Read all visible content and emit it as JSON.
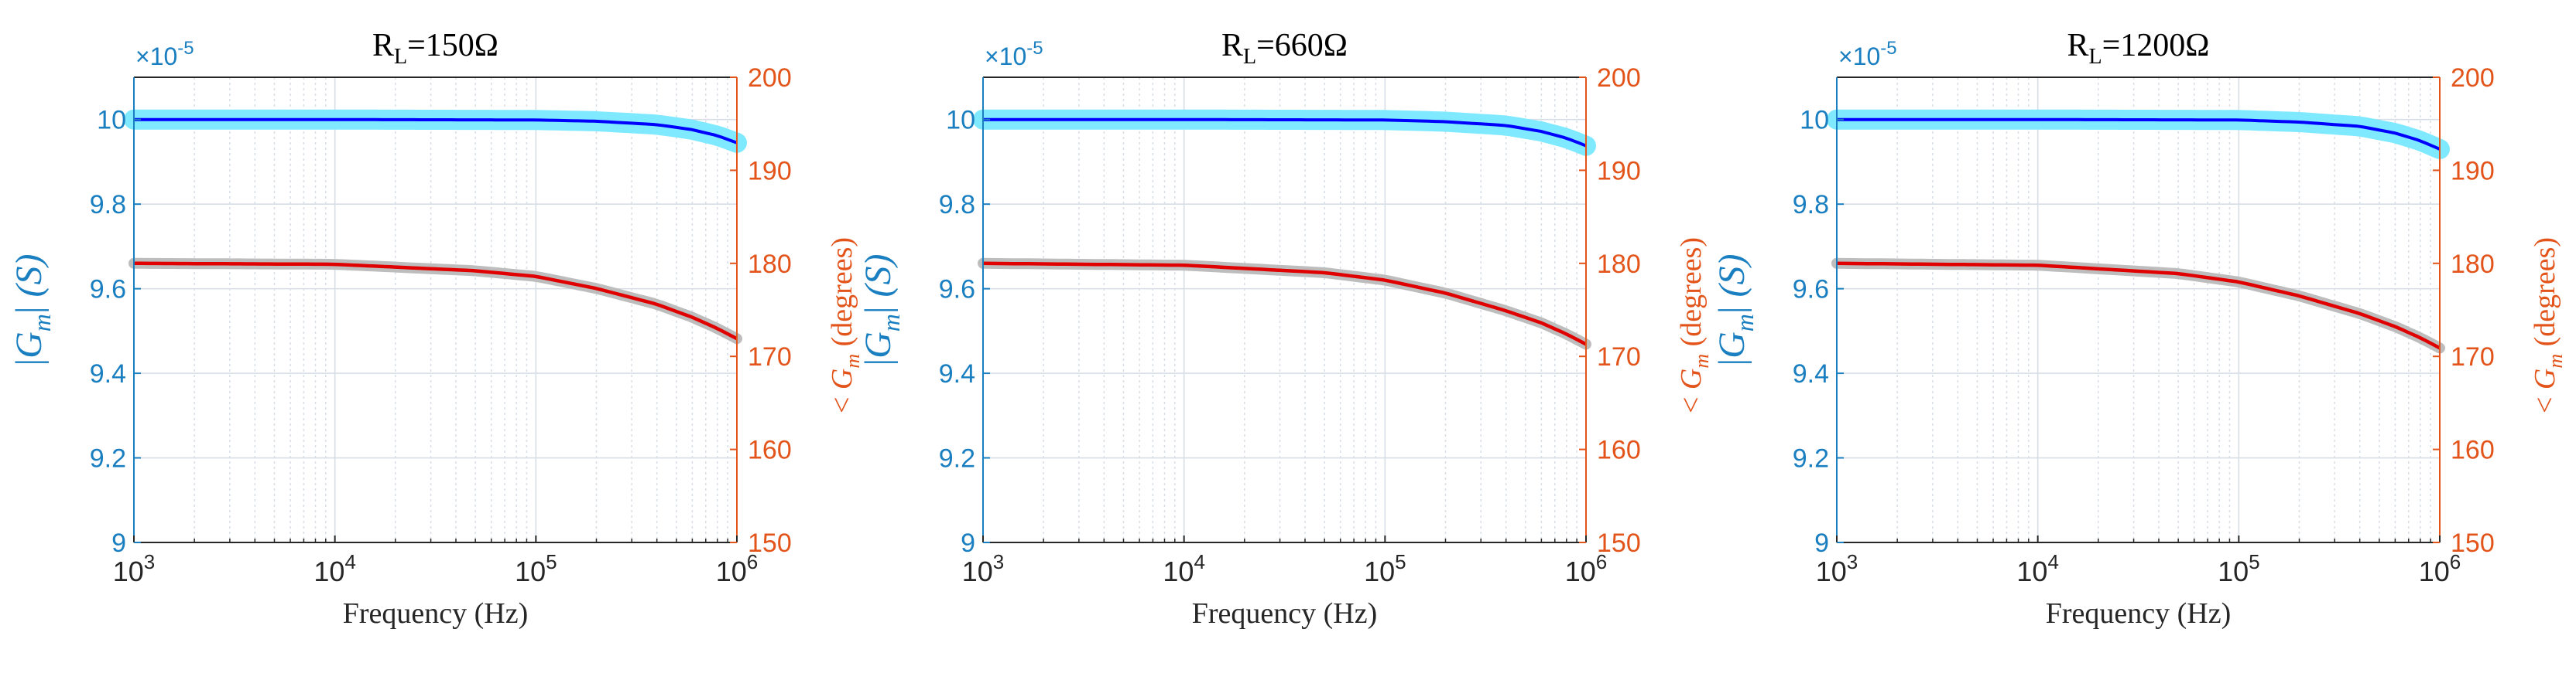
{
  "colors": {
    "left_axis": "#1a7fc0",
    "right_axis": "#e3541b",
    "magnitude_model": "#0000ff",
    "magnitude_measured": "#7fe9ff",
    "phase_model": "#e00000",
    "phase_measured": "#bdbdbd",
    "grid": "#d7dee6"
  },
  "chart_data": [
    {
      "type": "line",
      "title_main": "R",
      "title_sub": "L",
      "title_rest": "=150Ω",
      "xlabel": "Frequency (Hz)",
      "xscale": "log",
      "xlim": [
        1000,
        1000000
      ],
      "xtick_base": [
        "10",
        "10",
        "10",
        "10"
      ],
      "xtick_exp": [
        "3",
        "4",
        "5",
        "6"
      ],
      "ylabel_left": "|G_m| (S)",
      "ylabel_left_parts": {
        "bar": "|",
        "sym": "G",
        "sub": "m",
        "close": "|",
        "unit": "(S)"
      },
      "ylim_left": [
        9,
        10.1
      ],
      "yscale_factor": "×10",
      "yscale_exp": "-5",
      "yticks_left": [
        "9",
        "9.2",
        "9.4",
        "9.6",
        "9.8",
        "10"
      ],
      "ylabel_right_parts": {
        "lt": "<",
        "sym": "G",
        "sub": "m",
        "unit": "(degrees)"
      },
      "ylim_right": [
        150,
        200
      ],
      "yticks_right": [
        "150",
        "160",
        "170",
        "180",
        "190",
        "200"
      ],
      "series": [
        {
          "name": "magnitude",
          "axis": "left",
          "x": [
            1000,
            10000,
            100000,
            200000,
            400000,
            600000,
            800000,
            1000000
          ],
          "values": [
            10.0,
            10.0,
            9.999,
            9.996,
            9.988,
            9.976,
            9.962,
            9.945
          ]
        },
        {
          "name": "phase",
          "axis": "right",
          "x": [
            1000,
            10000,
            50000,
            100000,
            200000,
            400000,
            600000,
            800000,
            1000000
          ],
          "values": [
            180.0,
            179.9,
            179.2,
            178.6,
            177.3,
            175.6,
            174.2,
            173.0,
            171.9
          ]
        }
      ]
    },
    {
      "type": "line",
      "title_main": "R",
      "title_sub": "L",
      "title_rest": "=660Ω",
      "xlabel": "Frequency (Hz)",
      "xscale": "log",
      "xlim": [
        1000,
        1000000
      ],
      "xtick_base": [
        "10",
        "10",
        "10",
        "10"
      ],
      "xtick_exp": [
        "3",
        "4",
        "5",
        "6"
      ],
      "ylabel_left": "|G_m| (S)",
      "ylabel_left_parts": {
        "bar": "|",
        "sym": "G",
        "sub": "m",
        "close": "|",
        "unit": "(S)"
      },
      "ylim_left": [
        9,
        10.1
      ],
      "yscale_factor": "×10",
      "yscale_exp": "-5",
      "yticks_left": [
        "9",
        "9.2",
        "9.4",
        "9.6",
        "9.8",
        "10"
      ],
      "ylabel_right_parts": {
        "lt": "<",
        "sym": "G",
        "sub": "m",
        "unit": "(degrees)"
      },
      "ylim_right": [
        150,
        200
      ],
      "yticks_right": [
        "150",
        "160",
        "170",
        "180",
        "190",
        "200"
      ],
      "series": [
        {
          "name": "magnitude",
          "axis": "left",
          "x": [
            1000,
            10000,
            100000,
            200000,
            400000,
            600000,
            800000,
            1000000
          ],
          "values": [
            10.0,
            10.0,
            9.999,
            9.995,
            9.986,
            9.972,
            9.956,
            9.938
          ]
        },
        {
          "name": "phase",
          "axis": "right",
          "x": [
            1000,
            10000,
            50000,
            100000,
            200000,
            400000,
            600000,
            800000,
            1000000
          ],
          "values": [
            180.0,
            179.8,
            179.0,
            178.2,
            176.8,
            174.9,
            173.6,
            172.4,
            171.3
          ]
        }
      ]
    },
    {
      "type": "line",
      "title_main": "R",
      "title_sub": "L",
      "title_rest": "=1200Ω",
      "xlabel": "Frequency (Hz)",
      "xscale": "log",
      "xlim": [
        1000,
        1000000
      ],
      "xtick_base": [
        "10",
        "10",
        "10",
        "10"
      ],
      "xtick_exp": [
        "3",
        "4",
        "5",
        "6"
      ],
      "ylabel_left": "|G_m| (S)",
      "ylabel_left_parts": {
        "bar": "|",
        "sym": "G",
        "sub": "m",
        "close": "|",
        "unit": "(S)"
      },
      "ylim_left": [
        9,
        10.1
      ],
      "yscale_factor": "×10",
      "yscale_exp": "-5",
      "yticks_left": [
        "9",
        "9.2",
        "9.4",
        "9.6",
        "9.8",
        "10"
      ],
      "ylabel_right_parts": {
        "lt": "<",
        "sym": "G",
        "sub": "m",
        "unit": "(degrees)"
      },
      "ylim_right": [
        150,
        200
      ],
      "yticks_right": [
        "150",
        "160",
        "170",
        "180",
        "190",
        "200"
      ],
      "series": [
        {
          "name": "magnitude",
          "axis": "left",
          "x": [
            1000,
            10000,
            100000,
            200000,
            400000,
            600000,
            800000,
            1000000
          ],
          "values": [
            10.0,
            10.0,
            9.999,
            9.994,
            9.984,
            9.968,
            9.95,
            9.93
          ]
        },
        {
          "name": "phase",
          "axis": "right",
          "x": [
            1000,
            10000,
            50000,
            100000,
            200000,
            400000,
            600000,
            800000,
            1000000
          ],
          "values": [
            180.0,
            179.8,
            178.9,
            178.0,
            176.5,
            174.6,
            173.2,
            172.0,
            170.9
          ]
        }
      ]
    }
  ]
}
